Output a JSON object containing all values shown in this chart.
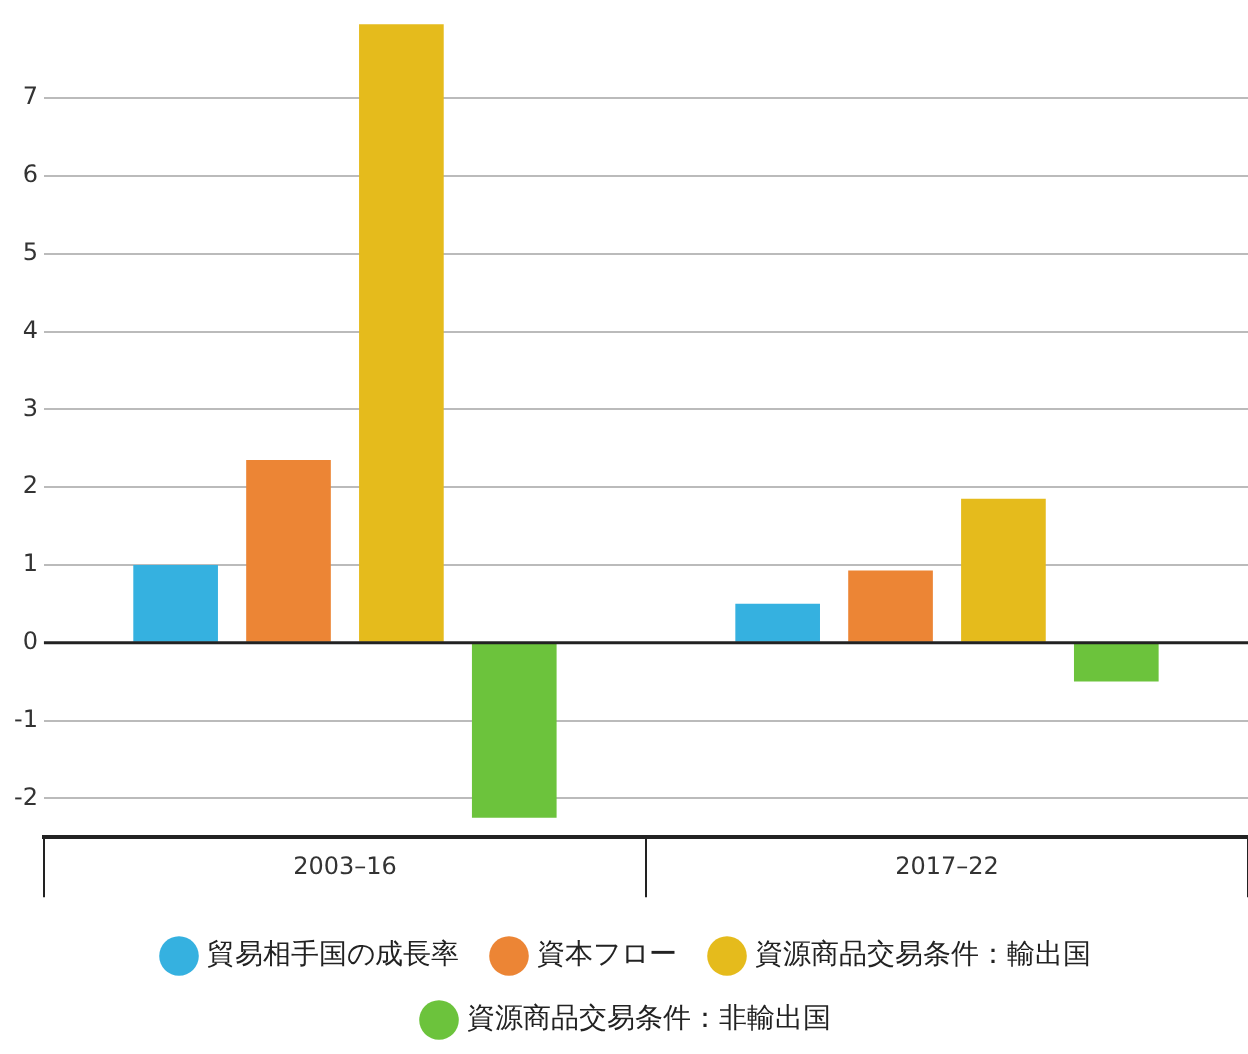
{
  "chart_data": {
    "type": "bar",
    "categories": [
      "2003–16",
      "2017–22"
    ],
    "series": [
      {
        "name": "貿易相手国の成長率",
        "color": "#35b1e0",
        "values": [
          1.0,
          0.5
        ]
      },
      {
        "name": "資本フロー",
        "color": "#ec8535",
        "values": [
          2.35,
          0.93
        ]
      },
      {
        "name": "資源商品交易条件：輸出国",
        "color": "#e5bb1c",
        "values": [
          7.95,
          1.85
        ]
      },
      {
        "name": "資源商品交易条件：非輸出国",
        "color": "#6cc33c",
        "values": [
          -2.25,
          -0.5
        ]
      }
    ],
    "ylim": [
      -2.5,
      8
    ],
    "yticks": [
      -2,
      -1,
      0,
      1,
      2,
      3,
      4,
      5,
      6,
      7
    ],
    "grid": "y",
    "legend": "bottom"
  }
}
